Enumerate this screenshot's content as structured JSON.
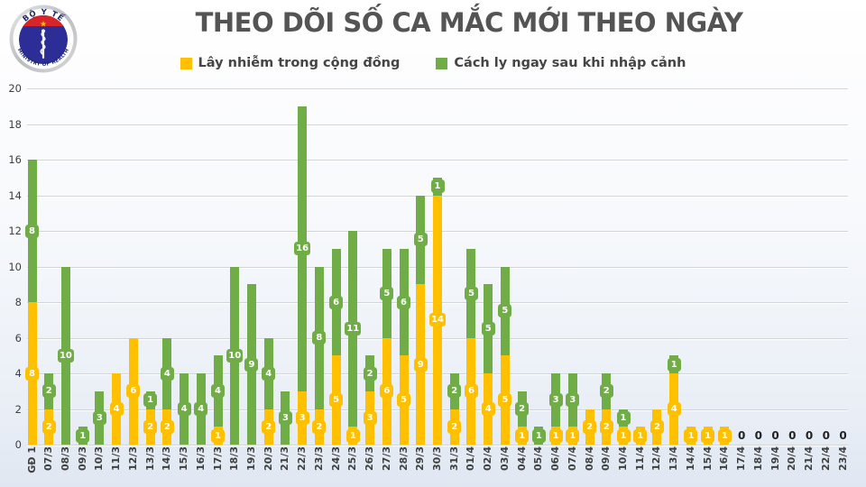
{
  "header": {
    "title": "THEO DÕI SỐ CA MẮC MỚI THEO NGÀY",
    "logo": {
      "top_text": "BỘ Y TẾ",
      "bottom_text": "MINISTRY OF HEALTH"
    }
  },
  "legend": {
    "items": [
      {
        "label": "Lây nhiễm trong cộng đồng",
        "color": "#FFC000"
      },
      {
        "label": "Cách ly ngay sau khi nhập cảnh",
        "color": "#70AD47"
      }
    ]
  },
  "chart_data": {
    "type": "bar",
    "stacked": true,
    "title": "THEO DÕI SỐ CA MẮC MỚI THEO NGÀY",
    "xlabel": "",
    "ylabel": "",
    "ylim": [
      0,
      20
    ],
    "yticks": [
      0,
      2,
      4,
      6,
      8,
      10,
      12,
      14,
      16,
      18,
      20
    ],
    "grid": true,
    "legend_position": "top",
    "categories": [
      "GĐ 1",
      "07/3",
      "08/3",
      "09/3",
      "10/3",
      "11/3",
      "12/3",
      "13/3",
      "14/3",
      "15/3",
      "16/3",
      "17/3",
      "18/3",
      "19/3",
      "20/3",
      "21/3",
      "22/3",
      "23/3",
      "24/3",
      "25/3",
      "26/3",
      "27/3",
      "28/3",
      "29/3",
      "30/3",
      "31/3",
      "01/4",
      "02/4",
      "03/4",
      "04/4",
      "05/4",
      "06/4",
      "07/4",
      "08/4",
      "09/4",
      "10/4",
      "11/4",
      "12/4",
      "13/4",
      "14/4",
      "15/4",
      "16/4",
      "17/4",
      "18/4",
      "19/4",
      "20/4",
      "21/4",
      "22/4",
      "23/4"
    ],
    "series": [
      {
        "name": "Lây nhiễm trong cộng đồng",
        "color": "#FFC000",
        "values": [
          8,
          2,
          0,
          0,
          0,
          4,
          6,
          2,
          2,
          0,
          0,
          1,
          0,
          0,
          2,
          0,
          3,
          2,
          5,
          1,
          3,
          6,
          5,
          9,
          14,
          2,
          6,
          4,
          5,
          1,
          0,
          1,
          1,
          2,
          2,
          1,
          1,
          2,
          4,
          1,
          1,
          1,
          0,
          0,
          0,
          0,
          0,
          0,
          0
        ]
      },
      {
        "name": "Cách ly ngay sau khi nhập cảnh",
        "color": "#70AD47",
        "values": [
          8,
          2,
          10,
          1,
          3,
          0,
          0,
          1,
          4,
          4,
          4,
          4,
          10,
          9,
          4,
          3,
          16,
          8,
          6,
          11,
          2,
          5,
          6,
          5,
          1,
          2,
          5,
          5,
          5,
          2,
          1,
          3,
          3,
          0,
          2,
          1,
          0,
          0,
          1,
          0,
          0,
          0,
          0,
          0,
          0,
          0,
          0,
          0,
          0
        ]
      }
    ],
    "zero_labels": [
      "17/4",
      "18/4",
      "19/4",
      "20/4",
      "21/4",
      "22/4",
      "23/4"
    ],
    "zero_label_text": "0"
  }
}
